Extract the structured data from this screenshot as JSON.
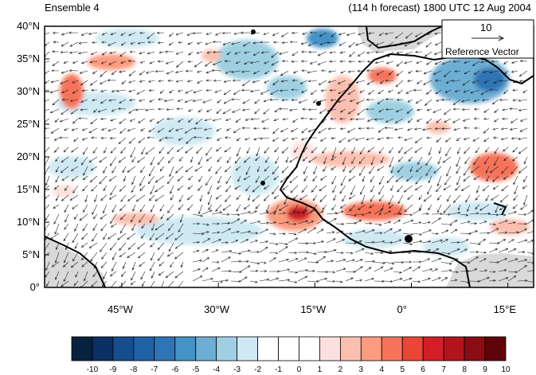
{
  "header": {
    "left": "Ensemble 4",
    "right": "(114 h forecast) 1800 UTC 12 Aug 2004"
  },
  "map": {
    "lat_labels": [
      "40°N",
      "35°N",
      "30°N",
      "25°N",
      "20°N",
      "15°N",
      "10°N",
      "5°N",
      "0°"
    ],
    "lon_labels": [
      "45°W",
      "30°W",
      "15°W",
      "0°",
      "15°E"
    ],
    "extent": {
      "lon_min": -57,
      "lon_max": 19,
      "lat_min": 0,
      "lat_max": 40
    }
  },
  "reference_vector": {
    "value": "10",
    "label": "Reference Vector"
  },
  "colorbar": {
    "labels": [
      "-10",
      "-9",
      "-8",
      "-7",
      "-6",
      "-5",
      "-4",
      "-3",
      "-2",
      "-1",
      "0",
      "1",
      "2",
      "3",
      "4",
      "5",
      "6",
      "7",
      "8",
      "9",
      "10"
    ],
    "colors": [
      "#08213f",
      "#0c2f63",
      "#154d8e",
      "#1f62a6",
      "#2d75b6",
      "#4493c6",
      "#6daed4",
      "#9fd0e2",
      "#cfe9f3",
      "#ffffff",
      "#ffffff",
      "#ffffff",
      "#fde0dd",
      "#fbbfb0",
      "#fb9b7f",
      "#f6735a",
      "#ea4535",
      "#d21f25",
      "#b1151b",
      "#8a0c14",
      "#5e040a"
    ]
  },
  "colors": {
    "land": "#d9d9d9",
    "coast": "#000000",
    "arrow": "#222222"
  }
}
